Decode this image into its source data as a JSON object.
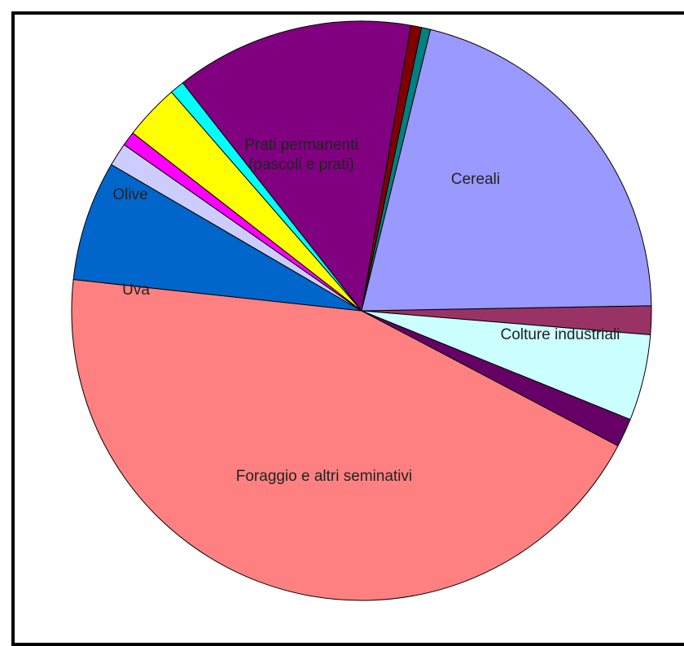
{
  "chart_data": {
    "type": "pie",
    "title": "",
    "start_angle_deg": -1,
    "clockwise": true,
    "slices": [
      {
        "label": "",
        "value": 1.6,
        "color": "#993366"
      },
      {
        "label": "Colture industriali",
        "value": 4.8,
        "color": "#CCFFFF"
      },
      {
        "label": "",
        "value": 1.6,
        "color": "#660066"
      },
      {
        "label": "Foraggio e altri seminativi",
        "value": 44.0,
        "color": "#FF8080"
      },
      {
        "label": "Uva",
        "value": 6.7,
        "color": "#0066CC"
      },
      {
        "label": "",
        "value": 1.3,
        "color": "#CCCCFF"
      },
      {
        "label": "",
        "value": 0.8,
        "color": "#FF00FF"
      },
      {
        "label": "Olive",
        "value": 3.1,
        "color": "#FFFF00"
      },
      {
        "label": "",
        "value": 0.8,
        "color": "#00FFFF"
      },
      {
        "label": "Prati permanenti\n(pascoli e prati)",
        "value": 13.3,
        "color": "#800080"
      },
      {
        "label": "",
        "value": 0.6,
        "color": "#800000"
      },
      {
        "label": "",
        "value": 0.5,
        "color": "#008080"
      },
      {
        "label": "Cereali",
        "value": 20.9,
        "color": "#9999FF"
      }
    ]
  }
}
